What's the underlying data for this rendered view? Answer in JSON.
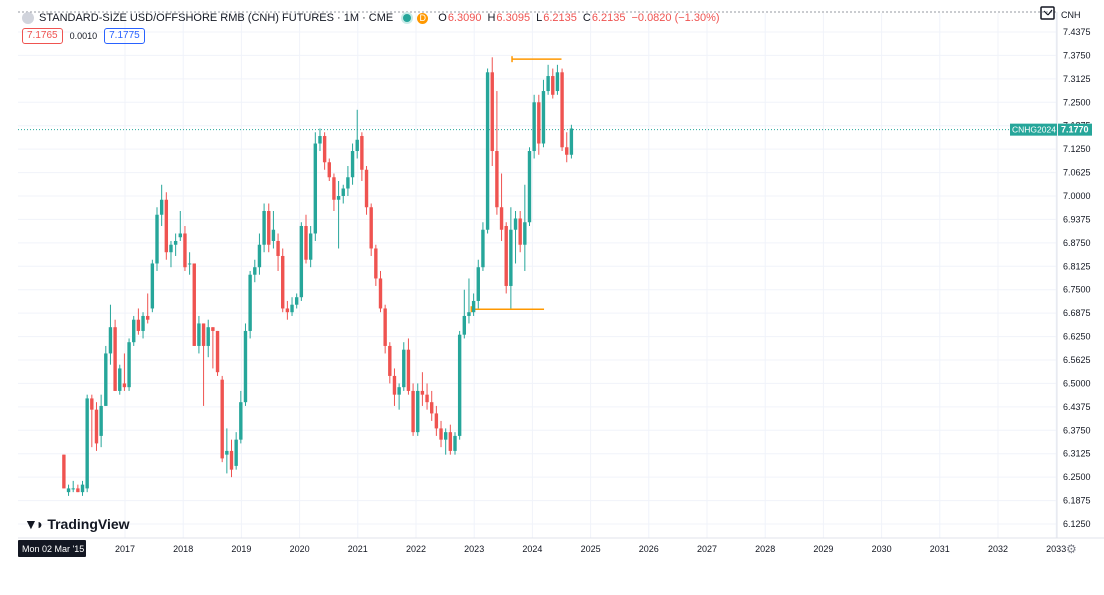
{
  "header": {
    "symbol": "STANDARD-SIZE USD/OFFSHORE RMB (CNH) FUTURES · 1M · CME",
    "d_badge": "D",
    "o_label": "O",
    "o_value": "6.3090",
    "h_label": "H",
    "h_value": "6.3095",
    "l_label": "L",
    "l_value": "6.2135",
    "c_label": "C",
    "c_value": "6.2135",
    "change": "−0.0820 (−1.30%)"
  },
  "quote": {
    "bid": "7.1765",
    "spread": "0.0010",
    "ask": "7.1775"
  },
  "watermark": {
    "text": "TradingView"
  },
  "currency": "CNH",
  "last_price": {
    "label": "CNHG2024",
    "value": "7.1770",
    "y": 7.177
  },
  "colors": {
    "up": "#26a69a",
    "down": "#ef5350",
    "level": "#ff9800",
    "axis_text": "#131722"
  },
  "chart_data": {
    "type": "candlestick",
    "interval": "1M",
    "y_ticks": [
      "7.4375",
      "7.3750",
      "7.3125",
      "7.2500",
      "7.1875",
      "7.1250",
      "7.0625",
      "7.0000",
      "6.9375",
      "6.8750",
      "6.8125",
      "6.7500",
      "6.6875",
      "6.6250",
      "6.5625",
      "6.5000",
      "6.4375",
      "6.3750",
      "6.3125",
      "6.2500",
      "6.1875",
      "6.1250"
    ],
    "ylim": [
      6.1,
      7.46
    ],
    "x_ticks": [
      "Mon 02 Mar '15",
      "2017",
      "2018",
      "2019",
      "2020",
      "2021",
      "2022",
      "2023",
      "2024",
      "2025",
      "2026",
      "2027",
      "2028",
      "2029",
      "2030",
      "2031",
      "2032",
      "2033"
    ],
    "xlim": [
      2015.92,
      2033.0
    ],
    "levels": [
      {
        "y": 7.365,
        "x_start": 2023.65,
        "x_end": 2024.5
      },
      {
        "y": 6.698,
        "x_start": 2022.95,
        "x_end": 2024.2
      }
    ],
    "series": [
      {
        "t": 2015.95,
        "o": 6.31,
        "h": 6.31,
        "l": 6.22,
        "c": 6.22
      },
      {
        "t": 2016.03,
        "o": 6.21,
        "h": 6.23,
        "l": 6.2,
        "c": 6.22
      },
      {
        "t": 2016.11,
        "o": 6.22,
        "h": 6.24,
        "l": 6.21,
        "c": 6.22
      },
      {
        "t": 2016.19,
        "o": 6.22,
        "h": 6.23,
        "l": 6.21,
        "c": 6.21
      },
      {
        "t": 2016.27,
        "o": 6.21,
        "h": 6.24,
        "l": 6.2,
        "c": 6.23
      },
      {
        "t": 2016.35,
        "o": 6.22,
        "h": 6.47,
        "l": 6.21,
        "c": 6.46
      },
      {
        "t": 2016.43,
        "o": 6.46,
        "h": 6.47,
        "l": 6.33,
        "c": 6.43
      },
      {
        "t": 2016.51,
        "o": 6.43,
        "h": 6.45,
        "l": 6.32,
        "c": 6.34
      },
      {
        "t": 2016.59,
        "o": 6.36,
        "h": 6.47,
        "l": 6.33,
        "c": 6.44
      },
      {
        "t": 2016.67,
        "o": 6.44,
        "h": 6.6,
        "l": 6.44,
        "c": 6.58
      },
      {
        "t": 2016.75,
        "o": 6.58,
        "h": 6.71,
        "l": 6.55,
        "c": 6.65
      },
      {
        "t": 2016.83,
        "o": 6.65,
        "h": 6.67,
        "l": 6.48,
        "c": 6.48
      },
      {
        "t": 2016.91,
        "o": 6.48,
        "h": 6.55,
        "l": 6.47,
        "c": 6.54
      },
      {
        "t": 2016.99,
        "o": 6.5,
        "h": 6.58,
        "l": 6.48,
        "c": 6.49
      },
      {
        "t": 2017.07,
        "o": 6.49,
        "h": 6.62,
        "l": 6.48,
        "c": 6.61
      },
      {
        "t": 2017.15,
        "o": 6.61,
        "h": 6.68,
        "l": 6.6,
        "c": 6.67
      },
      {
        "t": 2017.23,
        "o": 6.67,
        "h": 6.7,
        "l": 6.63,
        "c": 6.64
      },
      {
        "t": 2017.31,
        "o": 6.64,
        "h": 6.69,
        "l": 6.62,
        "c": 6.68
      },
      {
        "t": 2017.39,
        "o": 6.68,
        "h": 6.74,
        "l": 6.66,
        "c": 6.67
      },
      {
        "t": 2017.47,
        "o": 6.7,
        "h": 6.83,
        "l": 6.69,
        "c": 6.82
      },
      {
        "t": 2017.55,
        "o": 6.82,
        "h": 6.97,
        "l": 6.8,
        "c": 6.95
      },
      {
        "t": 2017.63,
        "o": 6.95,
        "h": 7.03,
        "l": 6.92,
        "c": 6.99
      },
      {
        "t": 2017.71,
        "o": 6.99,
        "h": 7.01,
        "l": 6.83,
        "c": 6.85
      },
      {
        "t": 2017.79,
        "o": 6.85,
        "h": 6.88,
        "l": 6.81,
        "c": 6.87
      },
      {
        "t": 2017.87,
        "o": 6.87,
        "h": 6.9,
        "l": 6.84,
        "c": 6.88
      },
      {
        "t": 2017.95,
        "o": 6.89,
        "h": 6.96,
        "l": 6.88,
        "c": 6.9
      },
      {
        "t": 2018.03,
        "o": 6.9,
        "h": 6.92,
        "l": 6.8,
        "c": 6.81
      },
      {
        "t": 2018.11,
        "o": 6.82,
        "h": 6.85,
        "l": 6.79,
        "c": 6.82
      },
      {
        "t": 2018.19,
        "o": 6.82,
        "h": 6.82,
        "l": 6.6,
        "c": 6.6
      },
      {
        "t": 2018.27,
        "o": 6.6,
        "h": 6.68,
        "l": 6.58,
        "c": 6.66
      },
      {
        "t": 2018.35,
        "o": 6.66,
        "h": 6.66,
        "l": 6.44,
        "c": 6.6
      },
      {
        "t": 2018.43,
        "o": 6.6,
        "h": 6.67,
        "l": 6.57,
        "c": 6.65
      },
      {
        "t": 2018.51,
        "o": 6.65,
        "h": 6.65,
        "l": 6.54,
        "c": 6.64
      },
      {
        "t": 2018.59,
        "o": 6.64,
        "h": 6.64,
        "l": 6.52,
        "c": 6.53
      },
      {
        "t": 2018.67,
        "o": 6.51,
        "h": 6.52,
        "l": 6.29,
        "c": 6.3
      },
      {
        "t": 2018.75,
        "o": 6.31,
        "h": 6.38,
        "l": 6.26,
        "c": 6.32
      },
      {
        "t": 2018.83,
        "o": 6.32,
        "h": 6.35,
        "l": 6.25,
        "c": 6.27
      },
      {
        "t": 2018.91,
        "o": 6.28,
        "h": 6.37,
        "l": 6.27,
        "c": 6.35
      },
      {
        "t": 2018.99,
        "o": 6.35,
        "h": 6.48,
        "l": 6.34,
        "c": 6.45
      },
      {
        "t": 2019.07,
        "o": 6.45,
        "h": 6.66,
        "l": 6.44,
        "c": 6.64
      },
      {
        "t": 2019.15,
        "o": 6.64,
        "h": 6.8,
        "l": 6.62,
        "c": 6.79
      },
      {
        "t": 2019.23,
        "o": 6.79,
        "h": 6.83,
        "l": 6.77,
        "c": 6.81
      },
      {
        "t": 2019.31,
        "o": 6.81,
        "h": 6.9,
        "l": 6.79,
        "c": 6.87
      },
      {
        "t": 2019.39,
        "o": 6.87,
        "h": 6.98,
        "l": 6.85,
        "c": 6.96
      },
      {
        "t": 2019.47,
        "o": 6.96,
        "h": 6.98,
        "l": 6.85,
        "c": 6.87
      },
      {
        "t": 2019.55,
        "o": 6.88,
        "h": 6.96,
        "l": 6.86,
        "c": 6.91
      },
      {
        "t": 2019.63,
        "o": 6.88,
        "h": 6.9,
        "l": 6.8,
        "c": 6.84
      },
      {
        "t": 2019.71,
        "o": 6.84,
        "h": 6.86,
        "l": 6.69,
        "c": 6.7
      },
      {
        "t": 2019.79,
        "o": 6.7,
        "h": 6.72,
        "l": 6.67,
        "c": 6.69
      },
      {
        "t": 2019.87,
        "o": 6.69,
        "h": 6.73,
        "l": 6.68,
        "c": 6.71
      },
      {
        "t": 2019.95,
        "o": 6.71,
        "h": 6.74,
        "l": 6.7,
        "c": 6.73
      },
      {
        "t": 2020.03,
        "o": 6.73,
        "h": 6.93,
        "l": 6.72,
        "c": 6.92
      },
      {
        "t": 2020.11,
        "o": 6.92,
        "h": 6.95,
        "l": 6.82,
        "c": 6.83
      },
      {
        "t": 2020.19,
        "o": 6.83,
        "h": 6.92,
        "l": 6.81,
        "c": 6.9
      },
      {
        "t": 2020.27,
        "o": 6.9,
        "h": 7.17,
        "l": 6.88,
        "c": 7.14
      },
      {
        "t": 2020.35,
        "o": 7.14,
        "h": 7.18,
        "l": 7.12,
        "c": 7.16
      },
      {
        "t": 2020.43,
        "o": 7.16,
        "h": 7.17,
        "l": 7.07,
        "c": 7.09
      },
      {
        "t": 2020.51,
        "o": 7.09,
        "h": 7.1,
        "l": 7.04,
        "c": 7.05
      },
      {
        "t": 2020.59,
        "o": 7.05,
        "h": 7.06,
        "l": 6.96,
        "c": 6.99
      },
      {
        "t": 2020.67,
        "o": 6.99,
        "h": 7.04,
        "l": 6.86,
        "c": 7.0
      },
      {
        "t": 2020.75,
        "o": 7.0,
        "h": 7.03,
        "l": 6.98,
        "c": 7.02
      },
      {
        "t": 2020.83,
        "o": 7.02,
        "h": 7.08,
        "l": 7.0,
        "c": 7.05
      },
      {
        "t": 2020.91,
        "o": 7.05,
        "h": 7.14,
        "l": 7.03,
        "c": 7.12
      },
      {
        "t": 2020.99,
        "o": 7.12,
        "h": 7.23,
        "l": 7.1,
        "c": 7.15
      },
      {
        "t": 2021.07,
        "o": 7.16,
        "h": 7.17,
        "l": 7.04,
        "c": 7.07
      },
      {
        "t": 2021.15,
        "o": 7.07,
        "h": 7.08,
        "l": 6.95,
        "c": 6.97
      },
      {
        "t": 2021.23,
        "o": 6.97,
        "h": 6.98,
        "l": 6.84,
        "c": 6.86
      },
      {
        "t": 2021.31,
        "o": 6.86,
        "h": 6.87,
        "l": 6.76,
        "c": 6.78
      },
      {
        "t": 2021.39,
        "o": 6.78,
        "h": 6.8,
        "l": 6.69,
        "c": 6.7
      },
      {
        "t": 2021.47,
        "o": 6.7,
        "h": 6.71,
        "l": 6.58,
        "c": 6.6
      },
      {
        "t": 2021.55,
        "o": 6.6,
        "h": 6.61,
        "l": 6.5,
        "c": 6.52
      },
      {
        "t": 2021.63,
        "o": 6.52,
        "h": 6.54,
        "l": 6.44,
        "c": 6.47
      },
      {
        "t": 2021.71,
        "o": 6.47,
        "h": 6.5,
        "l": 6.43,
        "c": 6.49
      },
      {
        "t": 2021.79,
        "o": 6.49,
        "h": 6.61,
        "l": 6.48,
        "c": 6.59
      },
      {
        "t": 2021.87,
        "o": 6.59,
        "h": 6.62,
        "l": 6.47,
        "c": 6.48
      },
      {
        "t": 2021.95,
        "o": 6.48,
        "h": 6.5,
        "l": 6.36,
        "c": 6.37
      },
      {
        "t": 2022.03,
        "o": 6.37,
        "h": 6.5,
        "l": 6.36,
        "c": 6.48
      },
      {
        "t": 2022.11,
        "o": 6.48,
        "h": 6.53,
        "l": 6.44,
        "c": 6.47
      },
      {
        "t": 2022.19,
        "o": 6.47,
        "h": 6.5,
        "l": 6.43,
        "c": 6.45
      },
      {
        "t": 2022.27,
        "o": 6.45,
        "h": 6.48,
        "l": 6.4,
        "c": 6.42
      },
      {
        "t": 2022.35,
        "o": 6.42,
        "h": 6.44,
        "l": 6.36,
        "c": 6.38
      },
      {
        "t": 2022.43,
        "o": 6.38,
        "h": 6.4,
        "l": 6.33,
        "c": 6.35
      },
      {
        "t": 2022.51,
        "o": 6.35,
        "h": 6.38,
        "l": 6.31,
        "c": 6.37
      },
      {
        "t": 2022.59,
        "o": 6.37,
        "h": 6.39,
        "l": 6.31,
        "c": 6.32
      },
      {
        "t": 2022.67,
        "o": 6.32,
        "h": 6.37,
        "l": 6.31,
        "c": 6.36
      },
      {
        "t": 2022.75,
        "o": 6.36,
        "h": 6.64,
        "l": 6.35,
        "c": 6.63
      },
      {
        "t": 2022.83,
        "o": 6.63,
        "h": 6.75,
        "l": 6.62,
        "c": 6.68
      },
      {
        "t": 2022.91,
        "o": 6.68,
        "h": 6.78,
        "l": 6.66,
        "c": 6.69
      },
      {
        "t": 2022.99,
        "o": 6.69,
        "h": 6.74,
        "l": 6.68,
        "c": 6.72
      },
      {
        "t": 2023.07,
        "o": 6.72,
        "h": 6.83,
        "l": 6.7,
        "c": 6.81
      },
      {
        "t": 2023.15,
        "o": 6.81,
        "h": 6.93,
        "l": 6.8,
        "c": 6.91
      },
      {
        "t": 2023.23,
        "o": 6.91,
        "h": 7.34,
        "l": 6.9,
        "c": 7.33
      },
      {
        "t": 2023.31,
        "o": 7.33,
        "h": 7.37,
        "l": 7.08,
        "c": 7.12
      },
      {
        "t": 2023.39,
        "o": 7.12,
        "h": 7.28,
        "l": 6.95,
        "c": 6.97
      },
      {
        "t": 2023.47,
        "o": 6.97,
        "h": 7.06,
        "l": 6.88,
        "c": 6.91
      },
      {
        "t": 2023.55,
        "o": 6.92,
        "h": 6.93,
        "l": 6.74,
        "c": 6.76
      },
      {
        "t": 2023.63,
        "o": 6.76,
        "h": 6.97,
        "l": 6.7,
        "c": 6.91
      },
      {
        "t": 2023.71,
        "o": 6.91,
        "h": 6.96,
        "l": 6.82,
        "c": 6.94
      },
      {
        "t": 2023.79,
        "o": 6.94,
        "h": 6.96,
        "l": 6.85,
        "c": 6.87
      },
      {
        "t": 2023.87,
        "o": 6.87,
        "h": 7.03,
        "l": 6.8,
        "c": 6.93
      },
      {
        "t": 2023.95,
        "o": 6.93,
        "h": 7.13,
        "l": 6.92,
        "c": 7.12
      },
      {
        "t": 2024.03,
        "o": 7.12,
        "h": 7.27,
        "l": 7.1,
        "c": 7.25
      },
      {
        "t": 2024.11,
        "o": 7.25,
        "h": 7.27,
        "l": 7.11,
        "c": 7.14
      },
      {
        "t": 2024.19,
        "o": 7.14,
        "h": 7.31,
        "l": 7.13,
        "c": 7.28
      },
      {
        "t": 2024.27,
        "o": 7.28,
        "h": 7.35,
        "l": 7.27,
        "c": 7.32
      },
      {
        "t": 2024.35,
        "o": 7.32,
        "h": 7.34,
        "l": 7.26,
        "c": 7.27
      },
      {
        "t": 2024.43,
        "o": 7.28,
        "h": 7.35,
        "l": 7.27,
        "c": 7.33
      },
      {
        "t": 2024.51,
        "o": 7.33,
        "h": 7.34,
        "l": 7.12,
        "c": 7.13
      },
      {
        "t": 2024.59,
        "o": 7.13,
        "h": 7.17,
        "l": 7.09,
        "c": 7.11
      },
      {
        "t": 2024.67,
        "o": 7.11,
        "h": 7.19,
        "l": 7.1,
        "c": 7.18
      }
    ]
  }
}
